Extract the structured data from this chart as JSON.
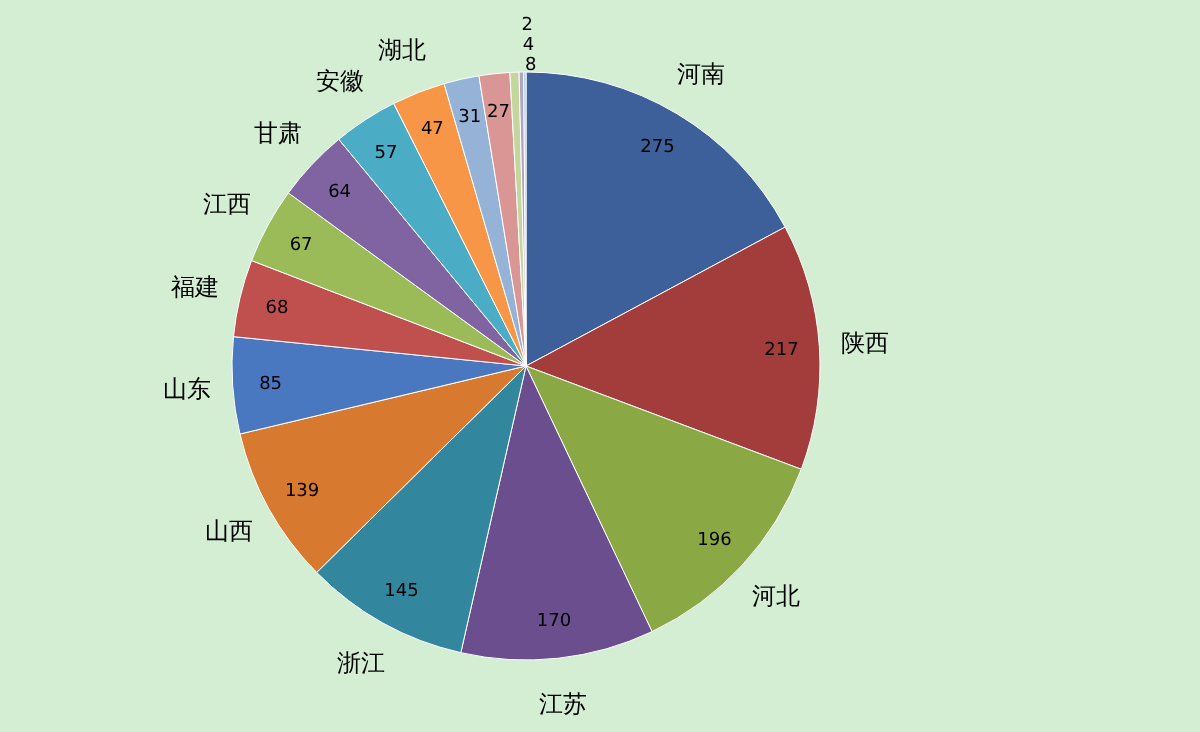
{
  "chart_data": {
    "type": "pie",
    "categories": [
      "河南",
      "陕西",
      "河北",
      "江苏",
      "浙江",
      "山西",
      "山东",
      "福建",
      "江西",
      "甘肃",
      "安徽",
      "湖北",
      null,
      null,
      null,
      null,
      null
    ],
    "values": [
      275,
      217,
      196,
      170,
      145,
      139,
      85,
      68,
      67,
      64,
      57,
      47,
      31,
      27,
      8,
      4,
      2
    ],
    "colors": [
      "#3d5f9a",
      "#a33d3b",
      "#8aa944",
      "#6a4e8e",
      "#32879f",
      "#d7792f",
      "#4a78c0",
      "#c0504d",
      "#9bbb59",
      "#8064a2",
      "#4bacc6",
      "#f79646",
      "#95b3d7",
      "#d99694",
      "#c3d69b",
      "#b3a2c7",
      "#93cddd"
    ],
    "data_labels": true
  }
}
